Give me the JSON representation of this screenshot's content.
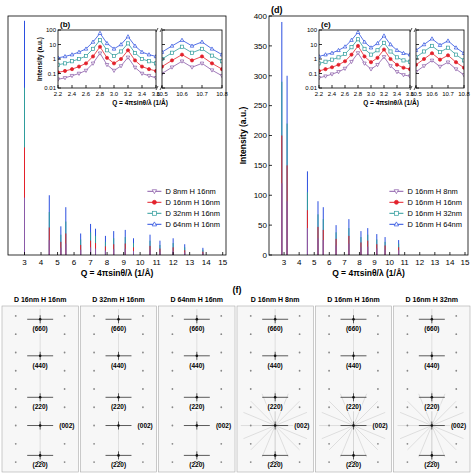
{
  "chart_data": [
    {
      "type": "stem",
      "xlabel": "Q = 4πsinθ/λ (1/Å)",
      "xlim": [
        2,
        15.2
      ],
      "xticks": [
        3,
        4,
        5,
        6,
        7,
        8,
        9,
        10,
        11,
        12,
        13,
        14,
        15
      ],
      "ylim": [
        0,
        1000
      ],
      "tick_labels": "x",
      "legend": "lower right",
      "x": [
        3.0,
        4.5,
        5.2,
        5.5,
        6.4,
        7.0,
        7.3,
        7.9,
        8.4,
        9.1,
        9.6,
        10.6,
        11.2,
        12.0,
        12.7,
        13.8
      ],
      "series": [
        {
          "name": "D 8nm  H 16nm",
          "color": "#8a5aa8",
          "marker": "triangle-down",
          "values": [
            240,
            62,
            30,
            48,
            22,
            32,
            27,
            19,
            24,
            26,
            17,
            20,
            14,
            17,
            11,
            8
          ]
        },
        {
          "name": "D 16nm  H 16nm",
          "color": "#e3212b",
          "marker": "circle",
          "values": [
            450,
            115,
            55,
            90,
            42,
            60,
            50,
            36,
            45,
            48,
            32,
            38,
            27,
            32,
            20,
            14
          ]
        },
        {
          "name": "D 32nm  H 16nm",
          "color": "#2f9c9c",
          "marker": "square",
          "values": [
            700,
            180,
            85,
            140,
            65,
            95,
            80,
            55,
            70,
            75,
            50,
            60,
            42,
            50,
            32,
            22
          ]
        },
        {
          "name": "D 64nm  H 16nm",
          "color": "#2b4fe0",
          "marker": "triangle-up",
          "values": [
            980,
            250,
            120,
            200,
            90,
            130,
            110,
            80,
            100,
            105,
            70,
            85,
            60,
            70,
            45,
            30
          ]
        }
      ]
    },
    {
      "type": "line",
      "title": "(b)",
      "xlabel": "Q = 4πsinθ/λ (1/Å)",
      "ylabel": "Intensity (a.u.)",
      "log": "y",
      "xlim": [
        2.2,
        3.6
      ],
      "xticks": [
        2.2,
        2.4,
        2.6,
        2.8,
        {
          "value": 3,
          "label": "3.0"
        },
        3.2,
        3.4,
        3.6
      ],
      "ylim": [
        0.01,
        100
      ],
      "yticks": [
        0.01,
        0.1,
        1,
        10,
        100
      ],
      "x": [
        2.2,
        2.3,
        2.4,
        2.5,
        2.6,
        2.7,
        2.8,
        2.9,
        3.0,
        3.1,
        3.2,
        3.3,
        3.4,
        3.5,
        3.6
      ],
      "series": [
        {
          "color": "#8a5aa8",
          "marker": "triangle-down",
          "values": [
            0.04,
            0.05,
            0.07,
            0.1,
            0.16,
            0.5,
            2.5,
            0.4,
            0.16,
            0.33,
            1.3,
            0.26,
            0.1,
            0.07,
            0.05
          ]
        },
        {
          "color": "#e3212b",
          "marker": "circle",
          "values": [
            0.12,
            0.15,
            0.2,
            0.3,
            0.5,
            1.5,
            7,
            1.2,
            0.5,
            1,
            4,
            0.8,
            0.3,
            0.2,
            0.15
          ]
        },
        {
          "color": "#2f9c9c",
          "marker": "square",
          "values": [
            0.4,
            0.5,
            0.7,
            1,
            1.6,
            5,
            20,
            4,
            1.6,
            3.3,
            12,
            2.6,
            1,
            0.7,
            0.5
          ]
        },
        {
          "color": "#2b4fe0",
          "marker": "triangle-up",
          "values": [
            1.2,
            1.5,
            2,
            3,
            5,
            15,
            60,
            12,
            5,
            10,
            35,
            8,
            3,
            2,
            1.5
          ]
        }
      ]
    },
    {
      "type": "line",
      "log": "y",
      "xlim": [
        10.5,
        10.8
      ],
      "xticks": [
        10.5,
        10.6,
        10.7,
        10.8
      ],
      "ylim": [
        0.01,
        100
      ],
      "yticks": [
        0.01,
        0.1,
        1,
        10,
        100
      ],
      "tick_labels": "x",
      "x": [
        10.5,
        10.55,
        10.6,
        10.65,
        10.7,
        10.75,
        10.8
      ],
      "series": [
        {
          "color": "#8a5aa8",
          "marker": "triangle-down",
          "values": [
            0.1,
            0.27,
            0.7,
            0.27,
            0.5,
            0.17,
            0.07
          ]
        },
        {
          "color": "#e3212b",
          "marker": "circle",
          "values": [
            0.3,
            0.8,
            2,
            0.8,
            1.5,
            0.5,
            0.2
          ]
        },
        {
          "color": "#2f9c9c",
          "marker": "square",
          "values": [
            1,
            2.7,
            7,
            2.7,
            5,
            1.7,
            0.7
          ]
        },
        {
          "color": "#2b4fe0",
          "marker": "triangle-up",
          "values": [
            3,
            8,
            20,
            8,
            15,
            5,
            2
          ]
        }
      ]
    },
    {
      "type": "stem",
      "title": "(d)",
      "xlabel": "Q = 4πsinθ/λ (1/Å)",
      "ylabel": "Intensity (a.u.)",
      "xlim": [
        2,
        15.2
      ],
      "xticks": [
        3,
        4,
        5,
        6,
        7,
        8,
        9,
        10,
        11,
        12,
        13,
        14,
        15
      ],
      "ylim": [
        0,
        400
      ],
      "yticks": [
        0,
        50,
        100,
        150,
        200,
        250,
        300,
        350,
        400
      ],
      "legend": "lower right",
      "x": [
        2.85,
        3.2,
        4.55,
        5.25,
        5.6,
        6.45,
        7.3,
        8.1,
        8.55,
        9.15,
        9.7,
        10.6
      ],
      "series": [
        {
          "name": "D 16nm  H 8nm",
          "color": "#8a5aa8",
          "marker": "triangle-down",
          "values": [
            120,
            90,
            45,
            28,
            25,
            16,
            19,
            13,
            14,
            11,
            9,
            8
          ]
        },
        {
          "name": "D 16nm  H 16nm",
          "color": "#e3212b",
          "marker": "circle",
          "values": [
            200,
            150,
            75,
            47,
            42,
            27,
            32,
            21,
            24,
            18,
            16,
            13
          ]
        },
        {
          "name": "D 16nm  H 32nm",
          "color": "#2f9c9c",
          "marker": "square",
          "values": [
            290,
            220,
            105,
            68,
            60,
            38,
            45,
            30,
            34,
            26,
            22,
            19
          ]
        },
        {
          "name": "D 16nm  H 64nm",
          "color": "#2b4fe0",
          "marker": "triangle-up",
          "values": [
            390,
            300,
            140,
            90,
            80,
            50,
            60,
            40,
            45,
            35,
            30,
            25
          ]
        }
      ]
    },
    {
      "type": "line",
      "title": "(e)",
      "xlabel": "Q = 4πsinθ/λ (1/Å)",
      "log": "y",
      "xlim": [
        2.2,
        3.6
      ],
      "xticks": [
        2.2,
        2.4,
        2.6,
        2.8,
        {
          "value": 3,
          "label": "3.0"
        },
        3.2,
        3.4,
        3.6
      ],
      "ylim": [
        0.01,
        100
      ],
      "yticks": [
        0.01,
        0.1,
        1,
        10,
        100
      ],
      "x": [
        2.2,
        2.3,
        2.4,
        2.5,
        2.6,
        2.7,
        2.8,
        2.9,
        3.0,
        3.1,
        3.2,
        3.3,
        3.4,
        3.5,
        3.6
      ],
      "series": [
        {
          "color": "#8a5aa8",
          "marker": "triangle-down",
          "values": [
            0.05,
            0.065,
            0.09,
            0.13,
            0.22,
            0.65,
            2.6,
            0.5,
            0.2,
            0.4,
            1.4,
            0.33,
            0.13,
            0.08,
            0.065
          ]
        },
        {
          "color": "#e3212b",
          "marker": "circle",
          "values": [
            0.15,
            0.2,
            0.27,
            0.4,
            0.7,
            2,
            8,
            1.5,
            0.6,
            1.2,
            4.5,
            1,
            0.4,
            0.25,
            0.2
          ]
        },
        {
          "color": "#2f9c9c",
          "marker": "square",
          "values": [
            0.5,
            0.65,
            0.9,
            1.3,
            2.2,
            6.5,
            23,
            5,
            2,
            4,
            13,
            3.3,
            1.3,
            0.8,
            0.65
          ]
        },
        {
          "color": "#2b4fe0",
          "marker": "triangle-up",
          "values": [
            1.5,
            2,
            2.6,
            4,
            7,
            20,
            70,
            15,
            6,
            12,
            40,
            10,
            4,
            2.5,
            2
          ]
        }
      ]
    },
    {
      "type": "line",
      "log": "y",
      "xlim": [
        10.5,
        10.8
      ],
      "xticks": [
        10.5,
        10.6,
        10.7,
        10.8
      ],
      "ylim": [
        0.01,
        100
      ],
      "yticks": [
        0.01,
        0.1,
        1,
        10,
        100
      ],
      "tick_labels": "x",
      "x": [
        10.5,
        10.55,
        10.6,
        10.65,
        10.7,
        10.75,
        10.8
      ],
      "series": [
        {
          "color": "#8a5aa8",
          "marker": "triangle-down",
          "values": [
            0.13,
            0.33,
            0.8,
            0.3,
            0.6,
            0.2,
            0.08
          ]
        },
        {
          "color": "#e3212b",
          "marker": "circle",
          "values": [
            0.4,
            1,
            2.5,
            0.9,
            1.8,
            0.6,
            0.25
          ]
        },
        {
          "color": "#2f9c9c",
          "marker": "square",
          "values": [
            1.3,
            3.3,
            8,
            3,
            6,
            2,
            0.8
          ]
        },
        {
          "color": "#2b4fe0",
          "marker": "triangle-up",
          "values": [
            4,
            10,
            25,
            9,
            18,
            6,
            2.5
          ]
        }
      ]
    }
  ],
  "diffraction": {
    "title": "(f)",
    "panels": [
      {
        "label": "D 16nm  H 16nm",
        "spots": [
          "(660)",
          "(440)",
          "(220)",
          "(002)",
          "(2̄2̄0)"
        ]
      },
      {
        "label": "D 32nm  H 16nm",
        "spots": [
          "(660)",
          "(440)",
          "(220)",
          "(002)",
          "(2̄2̄0)"
        ]
      },
      {
        "label": "D 64nm  H 16nm",
        "spots": [
          "(660)",
          "(440)",
          "(220)",
          "(002)",
          "(2̄2̄0)"
        ]
      },
      {
        "label": "D 16nm  H 8nm",
        "spots": [
          "(660)",
          "(440)",
          "(220)",
          "(002)",
          "(2̄2̄0)"
        ]
      },
      {
        "label": "D 16nm  H 16nm",
        "spots": [
          "(660)",
          "(440)",
          "(220)",
          "(002)",
          "(2̄2̄0)"
        ]
      },
      {
        "label": "D 16nm  H 32nm",
        "spots": [
          "(660)",
          "(440)",
          "(220)",
          "(002)",
          "(2̄2̄0)"
        ]
      }
    ]
  }
}
